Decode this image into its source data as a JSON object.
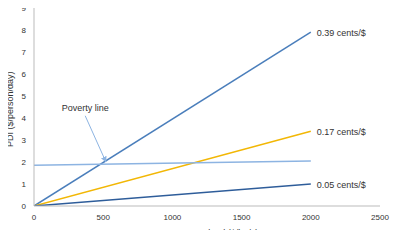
{
  "chart_data": {
    "type": "line",
    "x_label": "Net return to land ($/ha/y)",
    "y_label": "PDI ($/person/day)",
    "x": [
      0,
      2000
    ],
    "series": [
      {
        "name": "0.39 cents/$",
        "color": "#4a7ebb",
        "values": [
          0,
          7.9
        ]
      },
      {
        "name": "0.17 cents/$",
        "color": "#f2b705",
        "values": [
          0,
          3.4
        ]
      },
      {
        "name": "0.05 cents/$",
        "color": "#2e5d9a",
        "values": [
          0,
          1.0
        ]
      },
      {
        "color": "#8db4e2",
        "values": [
          1.85,
          2.05
        ]
      }
    ],
    "annotations": [
      {
        "text": "Poverty line",
        "x": 370,
        "y": 4.1,
        "arrow_to": [
          520,
          2.0
        ]
      }
    ],
    "xlim": [
      0,
      2500
    ],
    "xticks": [
      0,
      500,
      1000,
      1500,
      2000,
      2500
    ],
    "ylim": [
      0,
      9
    ],
    "yticks": [
      0,
      1,
      2,
      3,
      4,
      5,
      6,
      7,
      8,
      9
    ],
    "grid": false,
    "legend": "none"
  }
}
